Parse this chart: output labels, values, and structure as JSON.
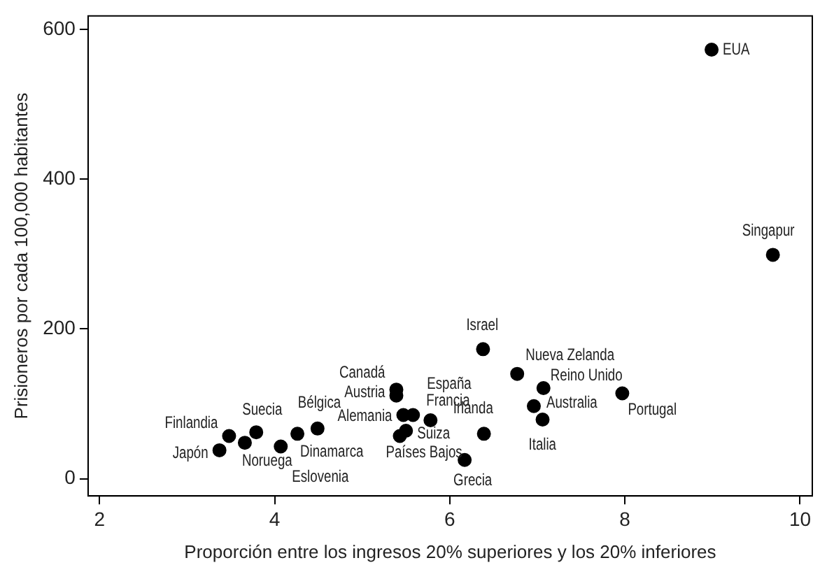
{
  "chart_data": {
    "type": "scatter",
    "xlabel": "Proporción entre los ingresos 20% superiores y los 20% inferiores",
    "ylabel": "Prisioneros por cada 100,000 habitantes",
    "xlim": [
      1.87,
      10.14
    ],
    "xticks": [
      2,
      4,
      6,
      8,
      10
    ],
    "ylim": [
      -23,
      618
    ],
    "yticks": [
      0,
      200,
      400,
      600
    ],
    "grid": false,
    "legend": false,
    "marker": "circle",
    "series": [
      {
        "color": "#000000",
        "x": [
          3.37,
          3.48,
          3.66,
          3.79,
          4.07,
          4.26,
          4.49,
          5.47,
          5.39,
          5.39,
          5.58,
          5.78,
          5.5,
          5.43,
          6.17,
          6.39,
          6.38,
          6.77,
          7.07,
          6.96,
          7.06,
          7.97,
          8.99,
          9.69
        ],
        "values": [
          38,
          57,
          48,
          62,
          43,
          60,
          67,
          85,
          119,
          111,
          85,
          78,
          64,
          57,
          25,
          60,
          173,
          140,
          121,
          97,
          79,
          114,
          573,
          299
        ]
      }
    ],
    "annotations": [
      {
        "text": "Japón",
        "x": 3.37,
        "y": 38
      },
      {
        "text": "Finlandia",
        "x": 3.48,
        "y": 57
      },
      {
        "text": "Noruega",
        "x": 3.66,
        "y": 48
      },
      {
        "text": "Suecia",
        "x": 3.79,
        "y": 62
      },
      {
        "text": "Eslovenia",
        "x": 4.07,
        "y": 43
      },
      {
        "text": "Dinamarca",
        "x": 4.26,
        "y": 60
      },
      {
        "text": "Bélgica",
        "x": 4.49,
        "y": 67
      },
      {
        "text": "Alemania",
        "x": 5.47,
        "y": 85
      },
      {
        "text": "Canadá",
        "x": 5.39,
        "y": 119
      },
      {
        "text": "Austria",
        "x": 5.39,
        "y": 111
      },
      {
        "text": "España",
        "x": 5.58,
        "y": 85
      },
      {
        "text": "Francia",
        "x": 5.78,
        "y": 78
      },
      {
        "text": "Suiza",
        "x": 5.5,
        "y": 64
      },
      {
        "text": "Países Bajos",
        "x": 5.43,
        "y": 57
      },
      {
        "text": "Grecia",
        "x": 6.17,
        "y": 25
      },
      {
        "text": "Irlanda",
        "x": 6.39,
        "y": 60
      },
      {
        "text": "Israel",
        "x": 6.38,
        "y": 173
      },
      {
        "text": "Nueva Zelanda",
        "x": 6.77,
        "y": 140
      },
      {
        "text": "Reino Unido",
        "x": 7.07,
        "y": 121
      },
      {
        "text": "Australia",
        "x": 6.96,
        "y": 97
      },
      {
        "text": "Italia",
        "x": 7.06,
        "y": 79
      },
      {
        "text": "Portugal",
        "x": 7.97,
        "y": 114
      },
      {
        "text": "EUA",
        "x": 8.99,
        "y": 573
      },
      {
        "text": "Singapur",
        "x": 9.69,
        "y": 299
      }
    ]
  }
}
